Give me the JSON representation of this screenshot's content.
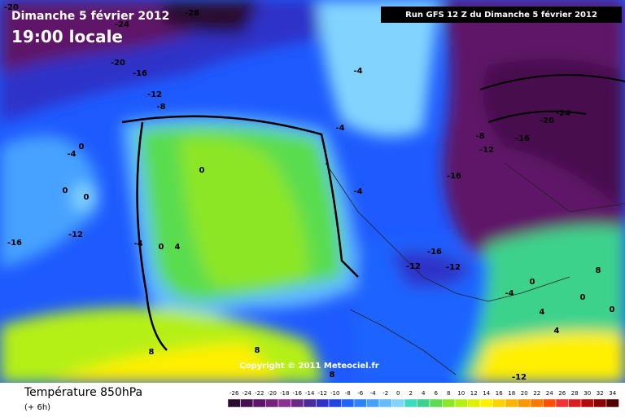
{
  "header": {
    "date": "Dimanche 5 février 2012",
    "time": "19:00 locale",
    "run": "Run GFS 12 Z du Dimanche 5 février 2012"
  },
  "copyright": "Copyright © 2011 Meteociel.fr",
  "footer": {
    "title": "Température 850hPa",
    "step": "(+ 6h)"
  },
  "contour_labels": [
    -20,
    -28,
    -24,
    -20,
    -16,
    -12,
    -8,
    -4,
    -4,
    -8,
    -12,
    -16,
    -24,
    -20,
    -16,
    0,
    -4,
    0,
    0,
    0,
    -12,
    -16,
    -4,
    0,
    4,
    -4,
    -16,
    -12,
    -12,
    -4,
    0,
    4,
    0,
    0,
    4,
    8,
    8,
    8,
    -12,
    8
  ],
  "scale": {
    "labels": [
      -26,
      -24,
      -22,
      -20,
      -18,
      -16,
      -14,
      -12,
      -10,
      -8,
      -6,
      -4,
      -2,
      0,
      2,
      4,
      6,
      8,
      10,
      12,
      14,
      16,
      18,
      20,
      22,
      24,
      26,
      28,
      30,
      32,
      34
    ],
    "colors": [
      "#2a0a2e",
      "#46104e",
      "#5e1468",
      "#78207e",
      "#8c3094",
      "#6a2a86",
      "#4a2aa0",
      "#2e32c8",
      "#1e46e6",
      "#1e64ff",
      "#2a84ff",
      "#46a2ff",
      "#64bcff",
      "#82d4ff",
      "#3cdcc0",
      "#3cd28c",
      "#5adc50",
      "#8ce628",
      "#b4f014",
      "#dcf000",
      "#fff000",
      "#ffd200",
      "#ffb400",
      "#ff9600",
      "#ff7800",
      "#ff5000",
      "#f03232",
      "#dc1e1e",
      "#b40a0a",
      "#8c0000",
      "#500000"
    ]
  }
}
